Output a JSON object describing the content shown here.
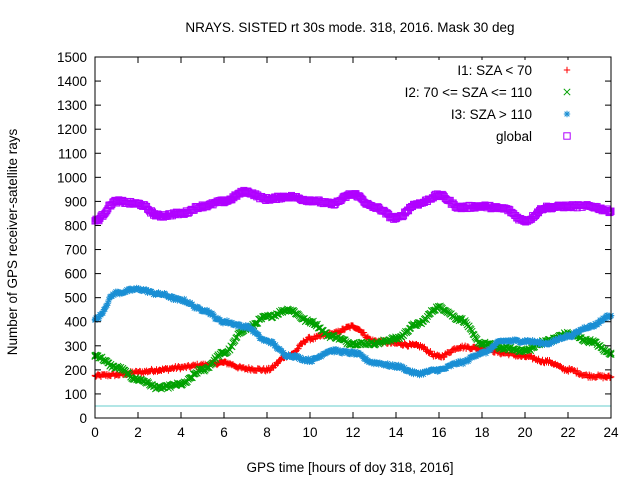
{
  "chart_data": {
    "type": "scatter",
    "title": "NRAYS. SISTED rt 30s mode. 318, 2016. Mask 30 deg",
    "xlabel": "GPS time [hours of doy 318, 2016]",
    "ylabel": "Number of GPS receiver-satellite rays",
    "xlim": [
      0,
      24
    ],
    "ylim": [
      0,
      1500
    ],
    "x_ticks": [
      "0",
      "2",
      "4",
      "6",
      "8",
      "10",
      "12",
      "14",
      "16",
      "18",
      "20",
      "22",
      "24"
    ],
    "y_ticks": [
      "0",
      "100",
      "200",
      "300",
      "400",
      "500",
      "600",
      "700",
      "800",
      "900",
      "1000",
      "1100",
      "1200",
      "1300",
      "1400",
      "1500"
    ],
    "grid": false,
    "legend_position": "top-right",
    "reference_line": {
      "y": 50,
      "color": "#66cccc"
    },
    "series": [
      {
        "name": "I1: SZA < 70",
        "marker": "+",
        "color": "#ff0000",
        "x": [
          0,
          1,
          2,
          3,
          4,
          5,
          6,
          7,
          8,
          9,
          10,
          11,
          12,
          13,
          14,
          15,
          16,
          17,
          18,
          19,
          20,
          21,
          22,
          23,
          24
        ],
        "values": [
          175,
          180,
          190,
          200,
          210,
          220,
          230,
          205,
          200,
          260,
          330,
          350,
          380,
          320,
          310,
          300,
          255,
          295,
          290,
          270,
          255,
          235,
          200,
          175,
          170
        ]
      },
      {
        "name": "I2: 70 <= SZA <= 110",
        "marker": "x",
        "color": "#00a000",
        "x": [
          0,
          1,
          2,
          3,
          4,
          5,
          6,
          7,
          8,
          9,
          10,
          11,
          12,
          13,
          14,
          15,
          16,
          17,
          18,
          19,
          20,
          21,
          22,
          23,
          24
        ],
        "values": [
          260,
          210,
          160,
          125,
          140,
          200,
          270,
          370,
          420,
          450,
          400,
          340,
          310,
          310,
          330,
          390,
          460,
          410,
          310,
          290,
          280,
          320,
          350,
          320,
          270
        ]
      },
      {
        "name": "I3: SZA > 110",
        "marker": "*",
        "color": "#1a8fd4",
        "x": [
          0,
          1,
          2,
          3,
          4,
          5,
          6,
          7,
          8,
          9,
          10,
          11,
          12,
          13,
          14,
          15,
          16,
          17,
          18,
          19,
          20,
          21,
          22,
          23,
          24
        ],
        "values": [
          410,
          520,
          535,
          515,
          490,
          450,
          400,
          380,
          320,
          260,
          240,
          280,
          270,
          230,
          215,
          185,
          200,
          230,
          270,
          320,
          320,
          310,
          340,
          380,
          425
        ]
      },
      {
        "name": "global",
        "marker": "square",
        "color": "#b000ff",
        "x": [
          0,
          1,
          2,
          3,
          4,
          5,
          6,
          7,
          8,
          9,
          10,
          11,
          12,
          13,
          14,
          15,
          16,
          17,
          18,
          19,
          20,
          21,
          22,
          23,
          24
        ],
        "values": [
          820,
          900,
          890,
          840,
          850,
          880,
          900,
          940,
          910,
          920,
          905,
          890,
          930,
          875,
          830,
          890,
          925,
          875,
          880,
          870,
          820,
          875,
          880,
          880,
          860
        ]
      }
    ]
  }
}
